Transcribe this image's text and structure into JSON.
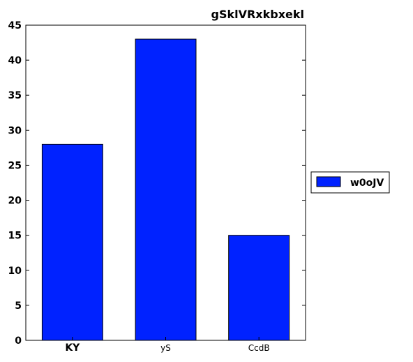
{
  "chart_data": {
    "type": "bar",
    "title": "gSklVRxkbxekl",
    "xlabel": "",
    "ylabel": "",
    "categories": [
      "KY",
      "yS",
      "CcdB"
    ],
    "series": [
      {
        "name": "w0oJV",
        "values": [
          28,
          43,
          15
        ],
        "color": "#0022ff"
      }
    ],
    "ylim": [
      0,
      45
    ],
    "yticks": [
      0,
      5,
      10,
      15,
      20,
      25,
      30,
      35,
      40,
      45
    ],
    "grid": false,
    "legend": "right"
  }
}
